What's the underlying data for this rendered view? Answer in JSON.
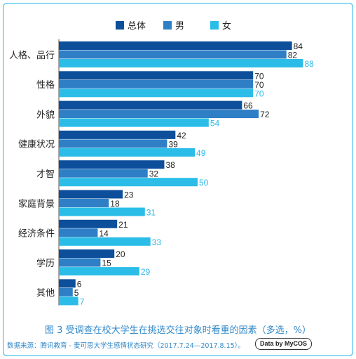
{
  "chart_data": {
    "type": "bar",
    "orientation": "horizontal",
    "categories": [
      "人格、品行",
      "性格",
      "外貌",
      "健康状况",
      "才智",
      "家庭背景",
      "经济条件",
      "学历",
      "其他"
    ],
    "series": [
      {
        "name": "总体",
        "color": "#0d4f9a",
        "values": [
          84,
          70,
          66,
          42,
          38,
          23,
          21,
          20,
          6
        ]
      },
      {
        "name": "男",
        "color": "#2f7fc6",
        "values": [
          82,
          70,
          72,
          39,
          32,
          18,
          14,
          15,
          5
        ]
      },
      {
        "name": "女",
        "color": "#2bbde8",
        "values": [
          88,
          70,
          54,
          49,
          50,
          31,
          33,
          29,
          7
        ]
      }
    ],
    "xlim": [
      0,
      100
    ],
    "legend_position": "top",
    "caption": "图 3  受调查在校大学生在挑选交往对象时看重的因素（多选，%）",
    "source": "数据来源：腾讯教育 - 麦可思大学生感情状态研究（2017.7.24—2017.8.15）。",
    "badge": "Data by MyCOS"
  }
}
